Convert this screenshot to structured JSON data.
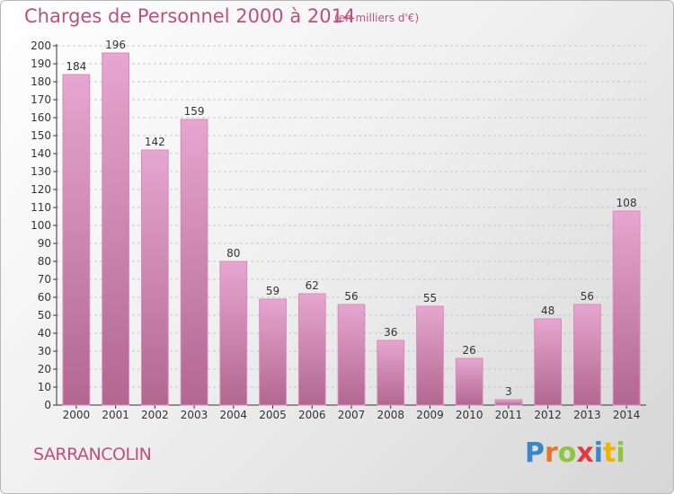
{
  "header": {
    "title": "Charges de Personnel 2000 à 2014",
    "subtitle": "(en milliers d'€)"
  },
  "footer": {
    "place": "SARRANCOLIN",
    "logo_text": "Proxiti",
    "logo_colors": [
      "#3a86c8",
      "#e8742a",
      "#8cc63e",
      "#e53a3a",
      "#3a86c8",
      "#f0b400",
      "#8cc63e"
    ]
  },
  "colors": {
    "bar_top": "#e6a6cf",
    "bar_bottom": "#b2678f",
    "bar_edge": "#d98abb",
    "text_accent": "#c0507a",
    "axis": "#333333"
  },
  "chart_data": {
    "type": "bar",
    "title": "Charges de Personnel 2000 à 2014",
    "subtitle": "(en milliers d'€)",
    "categories": [
      "2000",
      "2001",
      "2002",
      "2003",
      "2004",
      "2005",
      "2006",
      "2007",
      "2008",
      "2009",
      "2010",
      "2011",
      "2012",
      "2013",
      "2014"
    ],
    "values": [
      184,
      196,
      142,
      159,
      80,
      59,
      62,
      56,
      36,
      55,
      26,
      3,
      48,
      56,
      108
    ],
    "ylim": [
      0,
      200
    ],
    "ytick_step": 10,
    "grid": true,
    "xlabel": "",
    "ylabel": ""
  }
}
